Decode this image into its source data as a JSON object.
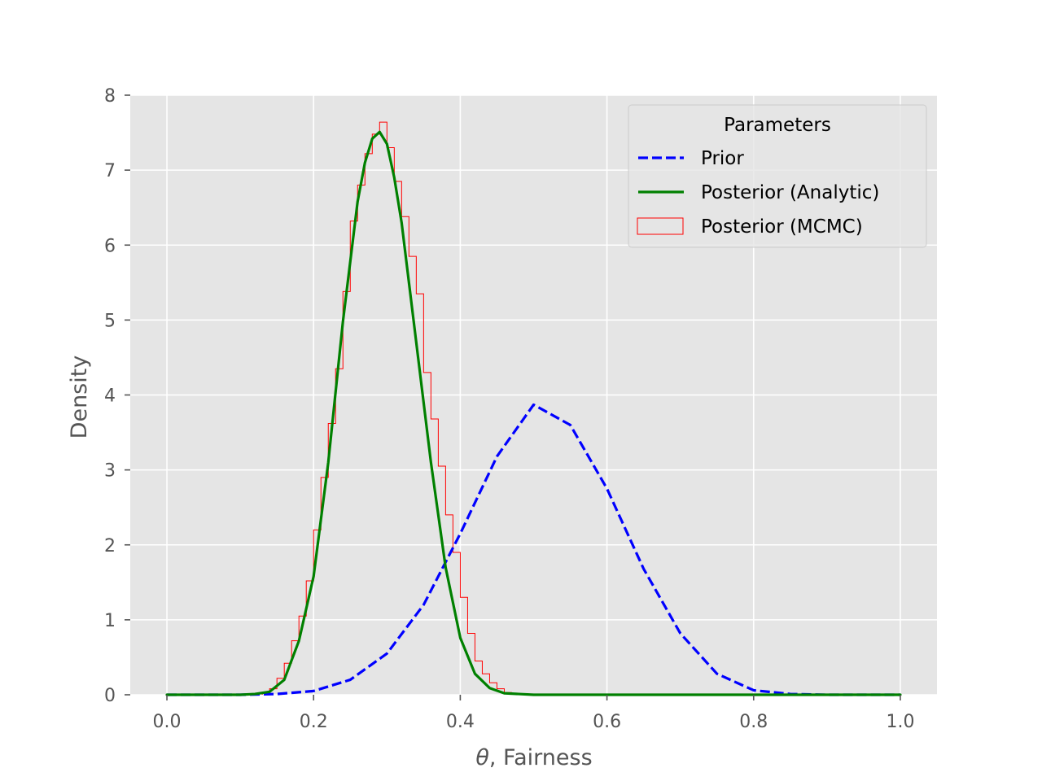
{
  "chart_data": {
    "type": "line",
    "xlabel_symbol": "θ",
    "xlabel_rest": ", Fairness",
    "ylabel": "Density",
    "xlim": [
      -0.05,
      1.05
    ],
    "ylim": [
      0,
      8
    ],
    "xticks": [
      0.0,
      0.2,
      0.4,
      0.6,
      0.8,
      1.0
    ],
    "xtick_labels": [
      "0.0",
      "0.2",
      "0.4",
      "0.6",
      "0.8",
      "1.0"
    ],
    "yticks": [
      0,
      1,
      2,
      3,
      4,
      5,
      6,
      7,
      8
    ],
    "ytick_labels": [
      "0",
      "1",
      "2",
      "3",
      "4",
      "5",
      "6",
      "7",
      "8"
    ],
    "grid": true,
    "legend": {
      "title": "Parameters",
      "placement": "top-right",
      "entries": [
        "Prior",
        "Posterior (Analytic)",
        "Posterior (MCMC)"
      ]
    },
    "series": [
      {
        "name": "Prior",
        "style": "dashed",
        "color": "#0000ff",
        "x": [
          0.0,
          0.05,
          0.1,
          0.15,
          0.2,
          0.25,
          0.3,
          0.35,
          0.4,
          0.45,
          0.5,
          0.55,
          0.6,
          0.65,
          0.7,
          0.75,
          0.8,
          0.85,
          0.9,
          0.95,
          1.0
        ],
        "values": [
          0.0,
          0.0,
          0.0,
          0.01,
          0.05,
          0.2,
          0.55,
          1.2,
          2.15,
          3.18,
          3.87,
          3.6,
          2.75,
          1.68,
          0.82,
          0.28,
          0.06,
          0.01,
          0.0,
          0.0,
          0.0
        ]
      },
      {
        "name": "Posterior (Analytic)",
        "style": "solid",
        "color": "#008000",
        "x": [
          0.0,
          0.1,
          0.12,
          0.14,
          0.16,
          0.18,
          0.2,
          0.22,
          0.24,
          0.26,
          0.27,
          0.28,
          0.29,
          0.3,
          0.31,
          0.32,
          0.34,
          0.36,
          0.38,
          0.4,
          0.42,
          0.44,
          0.46,
          0.48,
          0.5,
          0.6,
          1.0
        ],
        "values": [
          0.0,
          0.0,
          0.01,
          0.04,
          0.2,
          0.72,
          1.58,
          3.1,
          4.98,
          6.58,
          7.1,
          7.42,
          7.51,
          7.35,
          6.9,
          6.3,
          4.7,
          3.1,
          1.7,
          0.76,
          0.28,
          0.09,
          0.02,
          0.01,
          0.0,
          0.0,
          0.0
        ]
      },
      {
        "name": "Posterior (MCMC)",
        "type": "histogram",
        "color": "#ff0000",
        "bin_edges": [
          0.13,
          0.14,
          0.15,
          0.16,
          0.17,
          0.18,
          0.19,
          0.2,
          0.21,
          0.22,
          0.23,
          0.24,
          0.25,
          0.26,
          0.27,
          0.28,
          0.29,
          0.3,
          0.31,
          0.32,
          0.33,
          0.34,
          0.35,
          0.36,
          0.37,
          0.38,
          0.39,
          0.4,
          0.41,
          0.42,
          0.43,
          0.44,
          0.45,
          0.46,
          0.47,
          0.48
        ],
        "values": [
          0.03,
          0.08,
          0.22,
          0.42,
          0.72,
          1.05,
          1.52,
          2.2,
          2.9,
          3.62,
          4.35,
          5.38,
          6.32,
          6.8,
          7.22,
          7.48,
          7.64,
          7.3,
          6.85,
          6.38,
          5.85,
          5.35,
          4.3,
          3.68,
          3.05,
          2.4,
          1.9,
          1.3,
          0.82,
          0.45,
          0.28,
          0.16,
          0.08,
          0.03,
          0.01
        ]
      }
    ]
  }
}
